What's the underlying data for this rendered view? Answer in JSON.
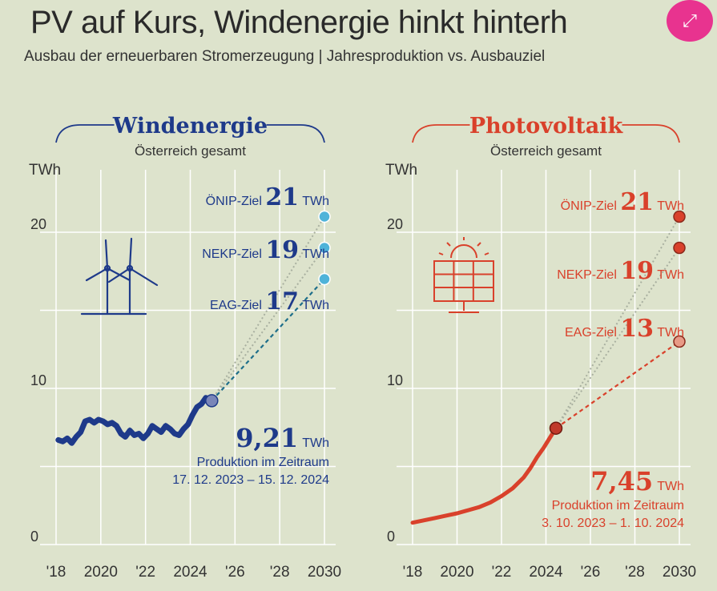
{
  "header": {
    "title": "PV auf Kurs, Windenergie hinkt hinterh",
    "subtitle": "Ausbau der erneuerbaren Stromerzeugung | Jahresproduktion vs. Ausbauziel"
  },
  "expand_icon": "expand-arrows-icon",
  "colors": {
    "background": "#dde3cc",
    "wind": "#1e3a8a",
    "wind_target": "#4fb3d9",
    "pv": "#d9412b",
    "grid": "#ffffff",
    "accent": "#e8338f"
  },
  "chart_data": [
    {
      "type": "line",
      "title": "Windenergie",
      "subtitle": "Österreich gesamt",
      "ylabel": "TWh",
      "ylim": [
        0,
        23
      ],
      "yticks": [
        "0",
        "10",
        "20"
      ],
      "xlim": [
        2018,
        2030
      ],
      "xticks": [
        "'18",
        "2020",
        "'22",
        "2024",
        "'26",
        "'28",
        "2030"
      ],
      "icon": "wind-turbine-icon",
      "series": [
        {
          "x": [
            2018.1,
            2018.3,
            2018.5,
            2018.7,
            2018.9,
            2019.1,
            2019.3,
            2019.5,
            2019.7,
            2019.9,
            2020.1,
            2020.3,
            2020.5,
            2020.7,
            2020.9,
            2021.1,
            2021.3,
            2021.5,
            2021.7,
            2021.9,
            2022.1,
            2022.3,
            2022.5,
            2022.7,
            2022.9,
            2023.1,
            2023.3,
            2023.5,
            2023.7,
            2023.9,
            2024.1,
            2024.3,
            2024.5,
            2024.7,
            2024.96
          ],
          "y": [
            6.7,
            6.6,
            6.8,
            6.5,
            6.9,
            7.2,
            7.9,
            8.0,
            7.8,
            8.0,
            7.9,
            7.7,
            7.8,
            7.6,
            7.1,
            6.9,
            7.3,
            7.0,
            7.1,
            6.8,
            7.1,
            7.6,
            7.4,
            7.2,
            7.6,
            7.4,
            7.1,
            7.0,
            7.4,
            7.7,
            8.3,
            8.8,
            9.0,
            9.4,
            9.21
          ]
        }
      ],
      "current_value": "9,21",
      "current_unit": "TWh",
      "current_label": "Produktion im Zeitraum",
      "current_period": "17. 12. 2023 – 15. 12. 2024",
      "targets": [
        {
          "label": "ÖNIP-Ziel",
          "value": 21,
          "value_text": "21",
          "unit": "TWh",
          "style": "dotted"
        },
        {
          "label": "NEKP-Ziel",
          "value": 19,
          "value_text": "19",
          "unit": "TWh",
          "style": "dotted"
        },
        {
          "label": "EAG-Ziel",
          "value": 17,
          "value_text": "17",
          "unit": "TWh",
          "style": "dashed"
        }
      ]
    },
    {
      "type": "line",
      "title": "Photovoltaik",
      "subtitle": "Österreich gesamt",
      "ylabel": "TWh",
      "ylim": [
        0,
        23
      ],
      "yticks": [
        "0",
        "10",
        "20"
      ],
      "xlim": [
        2018,
        2030
      ],
      "xticks": [
        "'18",
        "2020",
        "'22",
        "2024",
        "'26",
        "'28",
        "2030"
      ],
      "icon": "solar-panel-icon",
      "series": [
        {
          "x": [
            2018.0,
            2018.5,
            2019.0,
            2019.5,
            2020.0,
            2020.5,
            2021.0,
            2021.5,
            2022.0,
            2022.5,
            2023.0,
            2023.3,
            2023.6,
            2023.9,
            2024.2,
            2024.45
          ],
          "y": [
            1.4,
            1.55,
            1.7,
            1.85,
            2.0,
            2.2,
            2.4,
            2.7,
            3.1,
            3.6,
            4.3,
            4.9,
            5.6,
            6.2,
            6.9,
            7.45
          ]
        }
      ],
      "current_value": "7,45",
      "current_unit": "TWh",
      "current_label": "Produktion im Zeitraum",
      "current_period": "3. 10. 2023 – 1. 10. 2024",
      "targets": [
        {
          "label": "ÖNIP-Ziel",
          "value": 21,
          "value_text": "21",
          "unit": "TWh",
          "style": "dotted"
        },
        {
          "label": "NEKP-Ziel",
          "value": 19,
          "value_text": "19",
          "unit": "TWh",
          "style": "dotted"
        },
        {
          "label": "EAG-Ziel",
          "value": 13,
          "value_text": "13",
          "unit": "TWh",
          "style": "dashed"
        }
      ]
    }
  ]
}
